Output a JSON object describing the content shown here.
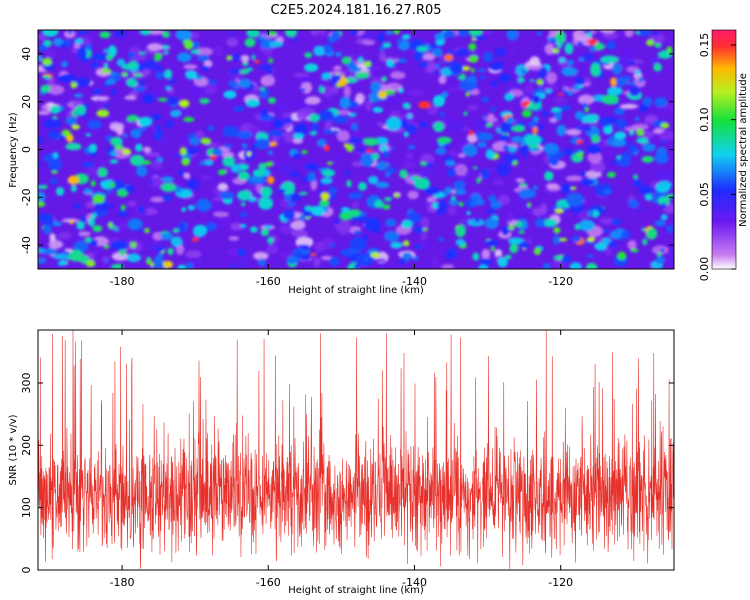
{
  "title": "C2E5.2024.181.16.27.R05",
  "chart_data": [
    {
      "type": "heatmap",
      "xlabel": "Height of straight line (km)",
      "ylabel": "Frequency (Hz)",
      "xlim": [
        -191.5,
        -104.5
      ],
      "ylim": [
        -50,
        50
      ],
      "x_ticks": [
        "-180",
        "-160",
        "-140",
        "-120"
      ],
      "y_ticks": [
        "-40",
        "-20",
        "0",
        "20",
        "40"
      ],
      "colorbar": {
        "label": "Normalized spectral amplitude",
        "range": [
          0.0,
          0.16
        ],
        "ticks": [
          "0.00",
          "0.05",
          "0.10",
          "0.15"
        ],
        "colormap": "rainbow (white → violet → blue → cyan → green → yellow → red)"
      },
      "grid": false
    },
    {
      "type": "line",
      "xlabel": "Height of straight line (km)",
      "ylabel": "SNR (10 * v/v)",
      "xlim": [
        -191.5,
        -104.5
      ],
      "ylim": [
        0,
        385
      ],
      "x_ticks": [
        "-180",
        "-160",
        "-140",
        "-120"
      ],
      "y_ticks": [
        "0",
        "100",
        "200",
        "300"
      ],
      "line_color": "#e8302a",
      "typical_range": [
        20,
        240
      ],
      "mean_level": 120,
      "peak_max": 385,
      "grid": false
    }
  ]
}
